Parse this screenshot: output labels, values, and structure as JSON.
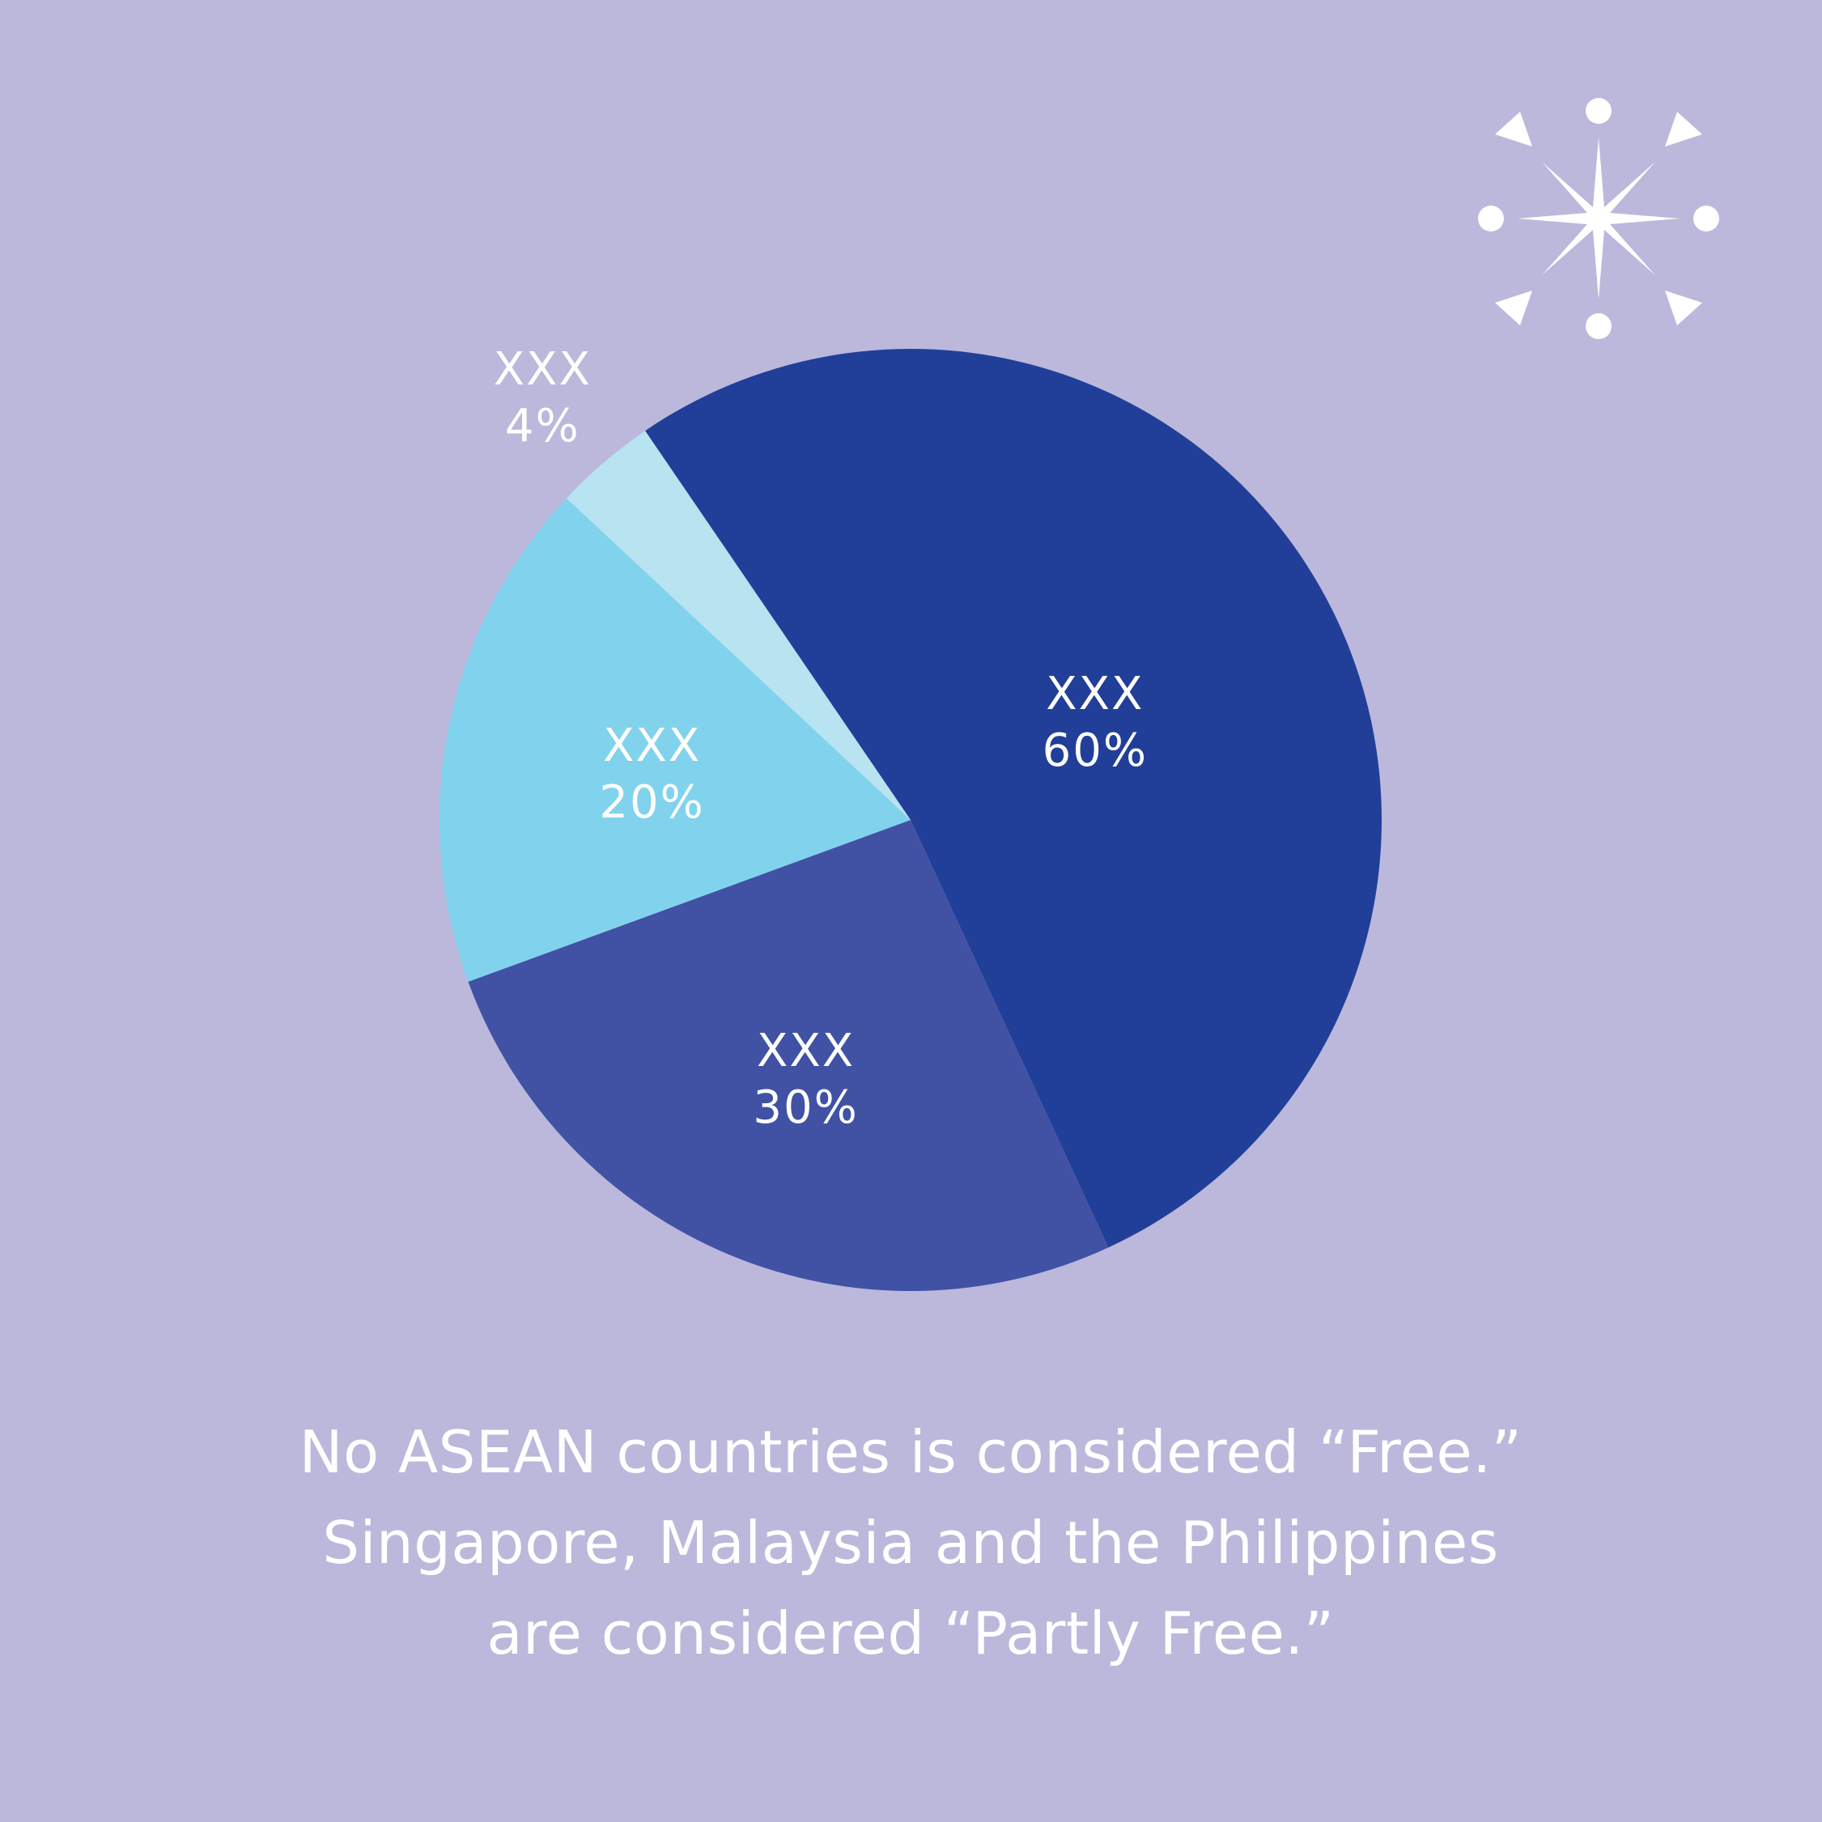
{
  "chart_data": {
    "type": "pie",
    "slices": [
      {
        "label": "XXX",
        "value": 60,
        "value_label": "60%",
        "color": "#213f98"
      },
      {
        "label": "XXX",
        "value": 30,
        "value_label": "30%",
        "color": "#4152a4"
      },
      {
        "label": "XXX",
        "value": 20,
        "value_label": "20%",
        "color": "#81d3ed"
      },
      {
        "label": "XXX",
        "value": 4,
        "value_label": "4%",
        "color": "#b8e3f1"
      }
    ]
  },
  "caption": {
    "line1": "No ASEAN countries is considered “Free.”",
    "line2": "Singapore, Malaysia and the Philippines",
    "line3": "are considered “Partly Free.”"
  },
  "decoration": {
    "icon": "sparkle-icon",
    "color": "#ffffff"
  },
  "colors": {
    "background": "#bbb8dc"
  }
}
